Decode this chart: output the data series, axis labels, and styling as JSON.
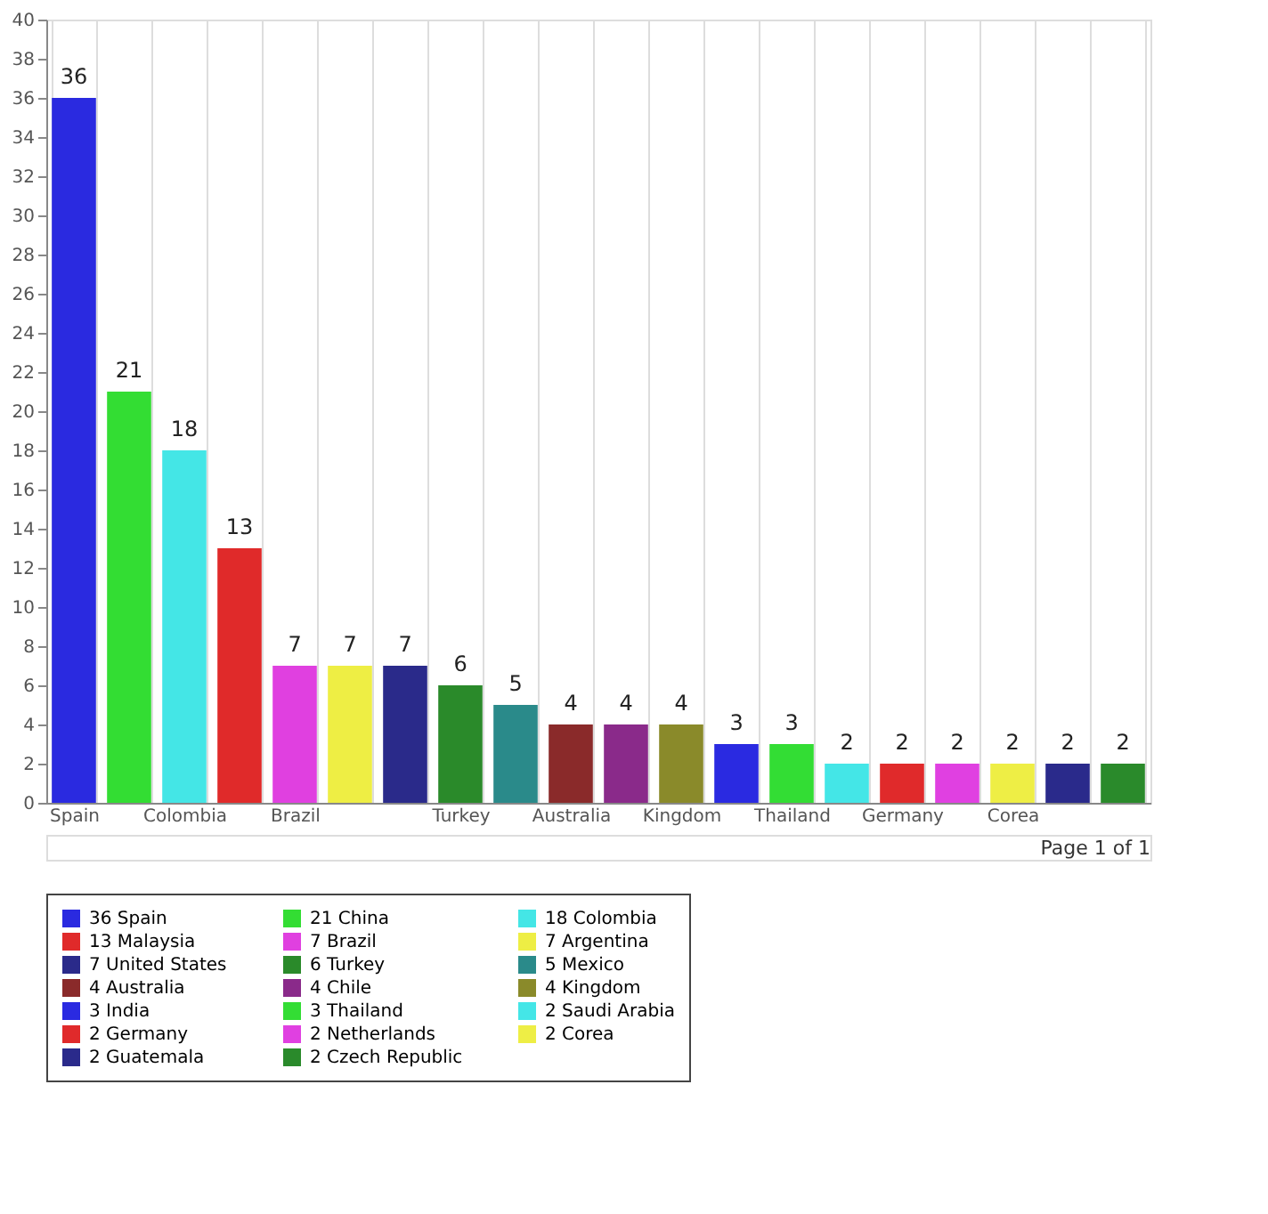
{
  "chart_data": {
    "type": "bar",
    "categories": [
      "Spain",
      null,
      "Colombia",
      null,
      "Brazil",
      null,
      null,
      "Turkey",
      null,
      "Australia",
      null,
      "Kingdom",
      null,
      "Thailand",
      null,
      "Germany",
      null,
      "Corea",
      null,
      null
    ],
    "series": [
      {
        "name": "36 Spain",
        "color": "#2a2ae0",
        "values": [
          36,
          null,
          null,
          null,
          null,
          null,
          null,
          null,
          null,
          null,
          null,
          null,
          null,
          null,
          null,
          null,
          null,
          null,
          null,
          null
        ]
      },
      {
        "name": "21 China",
        "color": "#33dd33",
        "values": [
          null,
          21,
          null,
          null,
          null,
          null,
          null,
          null,
          null,
          null,
          null,
          null,
          null,
          null,
          null,
          null,
          null,
          null,
          null,
          null
        ]
      },
      {
        "name": "18 Colombia",
        "color": "#44e6e6",
        "values": [
          null,
          null,
          18,
          null,
          null,
          null,
          null,
          null,
          null,
          null,
          null,
          null,
          null,
          null,
          null,
          null,
          null,
          null,
          null,
          null
        ]
      },
      {
        "name": "13 Malaysia",
        "color": "#e02a2a",
        "values": [
          null,
          null,
          null,
          13,
          null,
          null,
          null,
          null,
          null,
          null,
          null,
          null,
          null,
          null,
          null,
          null,
          null,
          null,
          null,
          null
        ]
      },
      {
        "name": "7 Brazil",
        "color": "#e040e0",
        "values": [
          null,
          null,
          null,
          null,
          7,
          null,
          null,
          null,
          null,
          null,
          null,
          null,
          null,
          null,
          null,
          null,
          null,
          null,
          null,
          null
        ]
      },
      {
        "name": "7 Argentina",
        "color": "#eeee44",
        "values": [
          null,
          null,
          null,
          null,
          null,
          7,
          null,
          null,
          null,
          null,
          null,
          null,
          null,
          null,
          null,
          null,
          null,
          null,
          null,
          null
        ]
      },
      {
        "name": "7 United States",
        "color": "#2a2a8a",
        "values": [
          null,
          null,
          null,
          null,
          null,
          null,
          7,
          null,
          null,
          null,
          null,
          null,
          null,
          null,
          null,
          null,
          null,
          null,
          null,
          null
        ]
      },
      {
        "name": "6 Turkey",
        "color": "#2a8a2a",
        "values": [
          null,
          null,
          null,
          null,
          null,
          null,
          null,
          6,
          null,
          null,
          null,
          null,
          null,
          null,
          null,
          null,
          null,
          null,
          null,
          null
        ]
      },
      {
        "name": "5 Mexico",
        "color": "#2a8a8a",
        "values": [
          null,
          null,
          null,
          null,
          null,
          null,
          null,
          null,
          5,
          null,
          null,
          null,
          null,
          null,
          null,
          null,
          null,
          null,
          null,
          null
        ]
      },
      {
        "name": "4 Australia",
        "color": "#8a2a2a",
        "values": [
          null,
          null,
          null,
          null,
          null,
          null,
          null,
          null,
          null,
          4,
          null,
          null,
          null,
          null,
          null,
          null,
          null,
          null,
          null,
          null
        ]
      },
      {
        "name": "4 Chile",
        "color": "#8a2a8a",
        "values": [
          null,
          null,
          null,
          null,
          null,
          null,
          null,
          null,
          null,
          null,
          4,
          null,
          null,
          null,
          null,
          null,
          null,
          null,
          null,
          null
        ]
      },
      {
        "name": "4 Kingdom",
        "color": "#8a8a2a",
        "values": [
          null,
          null,
          null,
          null,
          null,
          null,
          null,
          null,
          null,
          null,
          null,
          4,
          null,
          null,
          null,
          null,
          null,
          null,
          null,
          null
        ]
      },
      {
        "name": "3 India",
        "color": "#2a2ae1",
        "values": [
          null,
          null,
          null,
          null,
          null,
          null,
          null,
          null,
          null,
          null,
          null,
          null,
          3,
          null,
          null,
          null,
          null,
          null,
          null,
          null
        ]
      },
      {
        "name": "3 Thailand",
        "color": "#33dd34",
        "values": [
          null,
          null,
          null,
          null,
          null,
          null,
          null,
          null,
          null,
          null,
          null,
          null,
          null,
          3,
          null,
          null,
          null,
          null,
          null,
          null
        ]
      },
      {
        "name": "2 Saudi Arabia",
        "color": "#44e6e7",
        "values": [
          null,
          null,
          null,
          null,
          null,
          null,
          null,
          null,
          null,
          null,
          null,
          null,
          null,
          null,
          2,
          null,
          null,
          null,
          null,
          null
        ]
      },
      {
        "name": "2 Germany",
        "color": "#e02a2b",
        "values": [
          null,
          null,
          null,
          null,
          null,
          null,
          null,
          null,
          null,
          null,
          null,
          null,
          null,
          null,
          null,
          2,
          null,
          null,
          null,
          null
        ]
      },
      {
        "name": "2 Netherlands",
        "color": "#e040e1",
        "values": [
          null,
          null,
          null,
          null,
          null,
          null,
          null,
          null,
          null,
          null,
          null,
          null,
          null,
          null,
          null,
          null,
          2,
          null,
          null,
          null
        ]
      },
      {
        "name": "2 Corea",
        "color": "#eeee45",
        "values": [
          null,
          null,
          null,
          null,
          null,
          null,
          null,
          null,
          null,
          null,
          null,
          null,
          null,
          null,
          null,
          null,
          null,
          2,
          null,
          null
        ]
      },
      {
        "name": "2 Guatemala",
        "color": "#2a2a8b",
        "values": [
          null,
          null,
          null,
          null,
          null,
          null,
          null,
          null,
          null,
          null,
          null,
          null,
          null,
          null,
          null,
          null,
          null,
          null,
          2,
          null
        ]
      },
      {
        "name": "2 Czech Republic",
        "color": "#2a8a2b",
        "values": [
          null,
          null,
          null,
          null,
          null,
          null,
          null,
          null,
          null,
          null,
          null,
          null,
          null,
          null,
          null,
          null,
          null,
          null,
          null,
          2
        ]
      }
    ],
    "ylim": [
      0,
      40
    ],
    "yticks": [
      0,
      2,
      4,
      6,
      8,
      10,
      12,
      14,
      16,
      18,
      20,
      22,
      24,
      26,
      28,
      30,
      32,
      34,
      36,
      38,
      40
    ],
    "data_labels": true,
    "legend": "bottom",
    "grid": "x",
    "annotations": [
      "Page 1 of 1"
    ]
  }
}
